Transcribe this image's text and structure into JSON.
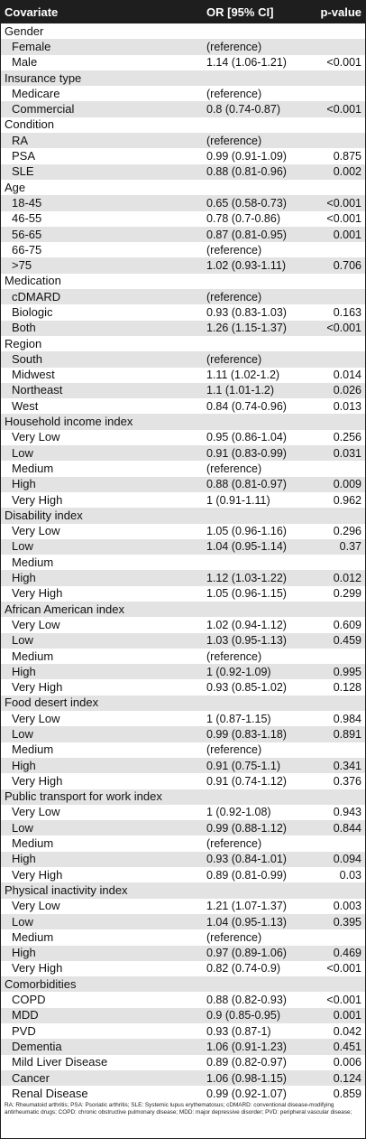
{
  "header": {
    "covariate": "Covariate",
    "or": "OR [95% CI]",
    "pvalue": "p-value"
  },
  "rows": [
    {
      "type": "group",
      "name": "Gender",
      "or": "",
      "p": ""
    },
    {
      "type": "item",
      "name": "Female",
      "or": "(reference)",
      "p": ""
    },
    {
      "type": "item",
      "name": "Male",
      "or": "1.14 (1.06-1.21)",
      "p": "<0.001"
    },
    {
      "type": "group",
      "name": "Insurance type",
      "or": "",
      "p": ""
    },
    {
      "type": "item",
      "name": "Medicare",
      "or": "(reference)",
      "p": ""
    },
    {
      "type": "item",
      "name": "Commercial",
      "or": "0.8 (0.74-0.87)",
      "p": "<0.001"
    },
    {
      "type": "group",
      "name": "Condition",
      "or": "",
      "p": ""
    },
    {
      "type": "item",
      "name": "RA",
      "or": "(reference)",
      "p": ""
    },
    {
      "type": "item",
      "name": "PSA",
      "or": "0.99 (0.91-1.09)",
      "p": "0.875"
    },
    {
      "type": "item",
      "name": "SLE",
      "or": "0.88 (0.81-0.96)",
      "p": "0.002"
    },
    {
      "type": "group",
      "name": "Age",
      "or": "",
      "p": ""
    },
    {
      "type": "item",
      "name": "18-45",
      "or": "0.65 (0.58-0.73)",
      "p": "<0.001"
    },
    {
      "type": "item",
      "name": "46-55",
      "or": "0.78 (0.7-0.86)",
      "p": "<0.001"
    },
    {
      "type": "item",
      "name": "56-65",
      "or": "0.87 (0.81-0.95)",
      "p": "0.001"
    },
    {
      "type": "item",
      "name": "66-75",
      "or": "(reference)",
      "p": ""
    },
    {
      "type": "item",
      "name": ">75",
      "or": "1.02 (0.93-1.11)",
      "p": "0.706"
    },
    {
      "type": "group",
      "name": "Medication",
      "or": "",
      "p": ""
    },
    {
      "type": "item",
      "name": "cDMARD",
      "or": "(reference)",
      "p": ""
    },
    {
      "type": "item",
      "name": "Biologic",
      "or": "0.93 (0.83-1.03)",
      "p": "0.163"
    },
    {
      "type": "item",
      "name": "Both",
      "or": "1.26 (1.15-1.37)",
      "p": "<0.001"
    },
    {
      "type": "group",
      "name": "Region",
      "or": "",
      "p": ""
    },
    {
      "type": "item",
      "name": "South",
      "or": "(reference)",
      "p": ""
    },
    {
      "type": "item",
      "name": "Midwest",
      "or": "1.11 (1.02-1.2)",
      "p": "0.014"
    },
    {
      "type": "item",
      "name": "Northeast",
      "or": "1.1 (1.01-1.2)",
      "p": "0.026"
    },
    {
      "type": "item",
      "name": "West",
      "or": "0.84 (0.74-0.96)",
      "p": "0.013"
    },
    {
      "type": "group",
      "name": "Household income index",
      "or": "",
      "p": ""
    },
    {
      "type": "item",
      "name": "Very Low",
      "or": "0.95 (0.86-1.04)",
      "p": "0.256"
    },
    {
      "type": "item",
      "name": "Low",
      "or": "0.91 (0.83-0.99)",
      "p": "0.031"
    },
    {
      "type": "item",
      "name": "Medium",
      "or": "(reference)",
      "p": ""
    },
    {
      "type": "item",
      "name": "High",
      "or": "0.88 (0.81-0.97)",
      "p": "0.009"
    },
    {
      "type": "item",
      "name": "Very High",
      "or": "1 (0.91-1.11)",
      "p": "0.962"
    },
    {
      "type": "group",
      "name": "Disability index",
      "or": "",
      "p": ""
    },
    {
      "type": "item",
      "name": "Very Low",
      "or": "1.05 (0.96-1.16)",
      "p": "0.296"
    },
    {
      "type": "item",
      "name": "Low",
      "or": "1.04 (0.95-1.14)",
      "p": "0.37"
    },
    {
      "type": "item",
      "name": "Medium",
      "or": "",
      "p": ""
    },
    {
      "type": "item",
      "name": "High",
      "or": "1.12 (1.03-1.22)",
      "p": "0.012"
    },
    {
      "type": "item",
      "name": "Very High",
      "or": "1.05 (0.96-1.15)",
      "p": "0.299"
    },
    {
      "type": "group",
      "name": "African American index",
      "or": "",
      "p": ""
    },
    {
      "type": "item",
      "name": "Very Low",
      "or": "1.02 (0.94-1.12)",
      "p": "0.609"
    },
    {
      "type": "item",
      "name": "Low",
      "or": "1.03 (0.95-1.13)",
      "p": "0.459"
    },
    {
      "type": "item",
      "name": "Medium",
      "or": "(reference)",
      "p": ""
    },
    {
      "type": "item",
      "name": "High",
      "or": "1 (0.92-1.09)",
      "p": "0.995"
    },
    {
      "type": "item",
      "name": "Very High",
      "or": "0.93 (0.85-1.02)",
      "p": "0.128"
    },
    {
      "type": "group",
      "name": "Food desert index",
      "or": "",
      "p": ""
    },
    {
      "type": "item",
      "name": "Very Low",
      "or": "1 (0.87-1.15)",
      "p": "0.984"
    },
    {
      "type": "item",
      "name": "Low",
      "or": "0.99 (0.83-1.18)",
      "p": "0.891"
    },
    {
      "type": "item",
      "name": "Medium",
      "or": "(reference)",
      "p": ""
    },
    {
      "type": "item",
      "name": "High",
      "or": "0.91 (0.75-1.1)",
      "p": "0.341"
    },
    {
      "type": "item",
      "name": "Very High",
      "or": "0.91 (0.74-1.12)",
      "p": "0.376"
    },
    {
      "type": "group",
      "name": "Public transport for work index",
      "or": "",
      "p": ""
    },
    {
      "type": "item",
      "name": "Very Low",
      "or": "1 (0.92-1.08)",
      "p": "0.943"
    },
    {
      "type": "item",
      "name": "Low",
      "or": "0.99 (0.88-1.12)",
      "p": "0.844"
    },
    {
      "type": "item",
      "name": "Medium",
      "or": "(reference)",
      "p": ""
    },
    {
      "type": "item",
      "name": "High",
      "or": "0.93 (0.84-1.01)",
      "p": "0.094"
    },
    {
      "type": "item",
      "name": "Very High",
      "or": "0.89 (0.81-0.99)",
      "p": "0.03"
    },
    {
      "type": "group",
      "name": "Physical inactivity index",
      "or": "",
      "p": ""
    },
    {
      "type": "item",
      "name": "Very Low",
      "or": "1.21 (1.07-1.37)",
      "p": "0.003"
    },
    {
      "type": "item",
      "name": "Low",
      "or": "1.04 (0.95-1.13)",
      "p": "0.395"
    },
    {
      "type": "item",
      "name": "Medium",
      "or": "(reference)",
      "p": ""
    },
    {
      "type": "item",
      "name": "High",
      "or": "0.97 (0.89-1.06)",
      "p": "0.469"
    },
    {
      "type": "item",
      "name": "Very High",
      "or": "0.82 (0.74-0.9)",
      "p": "<0.001"
    },
    {
      "type": "group",
      "name": "Comorbidities",
      "or": "",
      "p": ""
    },
    {
      "type": "item",
      "name": "COPD",
      "or": "0.88 (0.82-0.93)",
      "p": "<0.001"
    },
    {
      "type": "item",
      "name": "MDD",
      "or": "0.9 (0.85-0.95)",
      "p": "0.001"
    },
    {
      "type": "item",
      "name": "PVD",
      "or": "0.93 (0.87-1)",
      "p": "0.042"
    },
    {
      "type": "item",
      "name": "Dementia",
      "or": "1.06 (0.91-1.23)",
      "p": "0.451"
    },
    {
      "type": "item",
      "name": "Mild Liver Disease",
      "or": "0.89 (0.82-0.97)",
      "p": "0.006"
    },
    {
      "type": "item",
      "name": "Cancer",
      "or": "1.06 (0.98-1.15)",
      "p": "0.124"
    },
    {
      "type": "item",
      "name": "Renal Disease",
      "or": "0.99 (0.92-1.07)",
      "p": "0.859"
    }
  ],
  "footnote": "RA: Rheumatoid arthritis; PSA: Psoriatic arthritis; SLE: Systemic lupus erythematosus; cDMARD: conventional disease-modifying antirheumatic drugs; COPD: chronic obstructive pulmonary disease; MDD: major depressive disorder; PVD: peripheral vascular disease;",
  "colors": {
    "header_bg": "#1e1e1e",
    "header_text": "#ffffff",
    "stripe": "#e3e3e3"
  }
}
